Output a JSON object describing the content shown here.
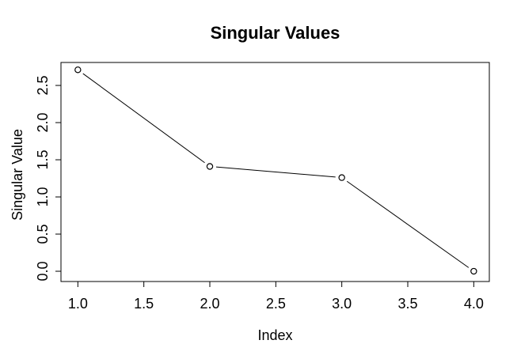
{
  "window": {
    "background": "#ffffff",
    "foreground": "#000000"
  },
  "figure": {
    "title": "Singular Values",
    "xlabel": "Index",
    "ylabel": "Singular Value"
  },
  "chart_data": {
    "type": "line",
    "title": "Singular Values",
    "xlabel": "Index",
    "ylabel": "Singular Value",
    "x": [
      1,
      2,
      3,
      4
    ],
    "y": [
      2.71,
      1.41,
      1.26,
      0.0
    ],
    "xlim": [
      0.872,
      4.118
    ],
    "ylim": [
      -0.138,
      2.809
    ],
    "xticks": [
      "1.0",
      "1.5",
      "2.0",
      "2.5",
      "3.0",
      "3.5",
      "4.0"
    ],
    "yticks": [
      "0.0",
      "0.5",
      "1.0",
      "1.5",
      "2.0",
      "2.5"
    ],
    "grid": false,
    "legend": false,
    "marker": "open-circle",
    "line_style": "points-and-segments",
    "stroke_color": "#000000",
    "marker_fill": "#ffffff",
    "background": "#ffffff"
  }
}
